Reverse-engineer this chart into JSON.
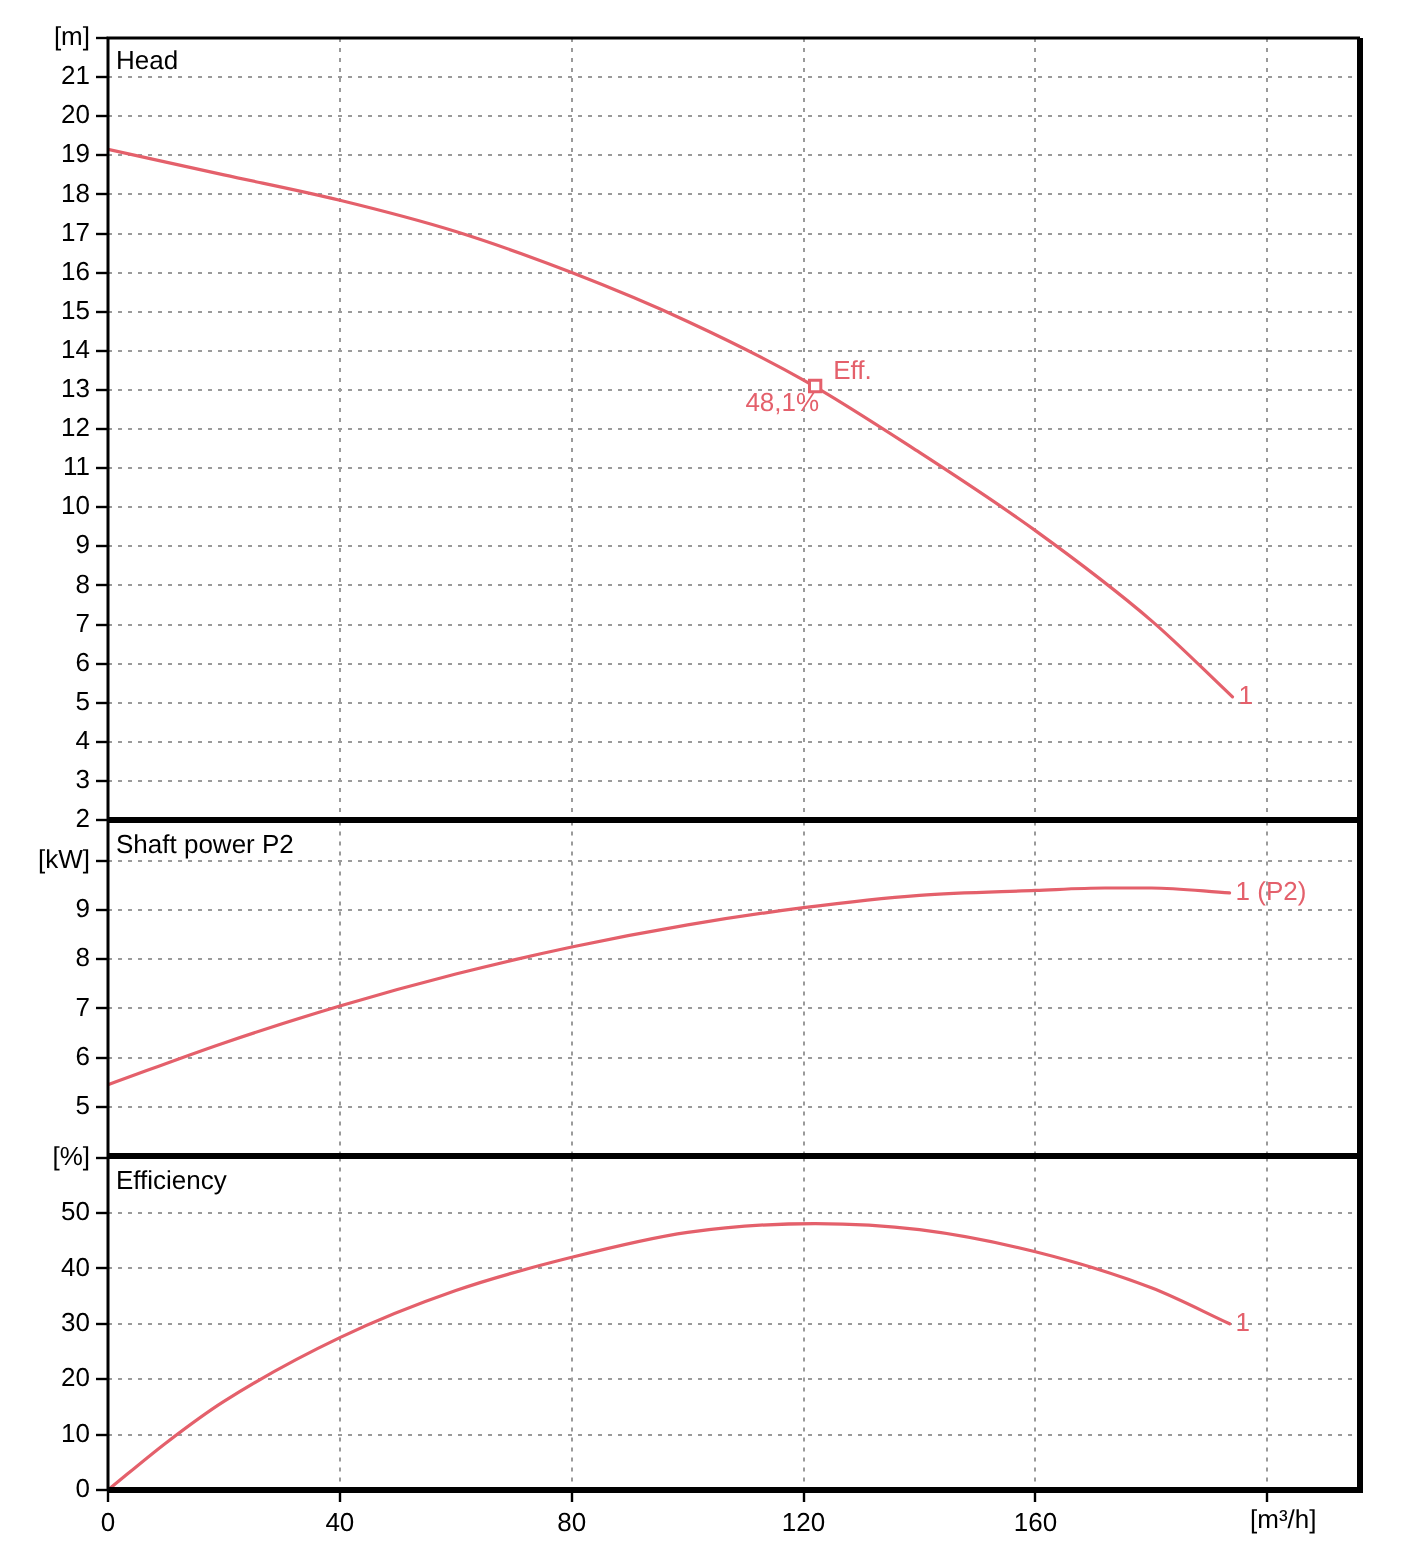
{
  "chart_data": [
    {
      "type": "line",
      "title": "Head",
      "ylabel": "[m]",
      "xlim": [
        0,
        216
      ],
      "ylim": [
        2,
        22
      ],
      "yticks": [
        2,
        3,
        4,
        5,
        6,
        7,
        8,
        9,
        10,
        11,
        12,
        13,
        14,
        15,
        16,
        17,
        18,
        19,
        20,
        21,
        {
          "value": 22,
          "label": null
        }
      ],
      "grid": true,
      "tick_labels": "y",
      "series": [
        {
          "name": "1",
          "color": "#e4606b",
          "x": [
            0,
            20,
            40,
            60,
            80,
            100,
            120,
            140,
            160,
            180,
            194
          ],
          "values": [
            19.15,
            18.5,
            17.85,
            17.05,
            16.0,
            14.75,
            13.25,
            11.4,
            9.4,
            7.1,
            5.15
          ]
        },
        {
          "type": "scatter",
          "name": "Eff.",
          "color": "#e4606b",
          "marker": "square",
          "x": [
            122
          ],
          "values": [
            13.1
          ]
        }
      ],
      "annotations": [
        {
          "text": "48,1%",
          "x": 122,
          "y": 13.1
        }
      ]
    },
    {
      "type": "line",
      "title": "Shaft power P2",
      "ylabel": "[kW]",
      "xlim": [
        0,
        216
      ],
      "ylim": [
        4,
        10.8
      ],
      "yticks": [
        5,
        6,
        7,
        8,
        9,
        {
          "value": 10,
          "label": null
        }
      ],
      "grid": true,
      "tick_labels": "y",
      "series": [
        {
          "name": "1 (P2)",
          "color": "#e4606b",
          "x": [
            0,
            20,
            40,
            60,
            80,
            100,
            120,
            140,
            160,
            172,
            180,
            193.5
          ],
          "values": [
            5.45,
            6.3,
            7.05,
            7.7,
            8.25,
            8.7,
            9.05,
            9.3,
            9.4,
            9.45,
            9.45,
            9.35
          ]
        }
      ]
    },
    {
      "type": "line",
      "title": "Efficiency",
      "ylabel": "[%]",
      "xlabel": "[m³/h]",
      "xlim": [
        0,
        216
      ],
      "xticks": [
        0,
        40,
        80,
        120,
        160,
        {
          "value": 200,
          "label": null
        }
      ],
      "ylim": [
        0,
        60
      ],
      "yticks": [
        0,
        10,
        20,
        30,
        40,
        50,
        {
          "value": 60,
          "label": null
        }
      ],
      "grid": true,
      "series": [
        {
          "name": "1",
          "color": "#e4606b",
          "x": [
            0,
            10,
            20,
            40,
            60,
            80,
            100,
            122,
            140,
            160,
            180,
            193.5
          ],
          "values": [
            0,
            8.5,
            16,
            27.5,
            36,
            42,
            46.5,
            48.1,
            47,
            43,
            36.5,
            30
          ]
        }
      ]
    }
  ]
}
